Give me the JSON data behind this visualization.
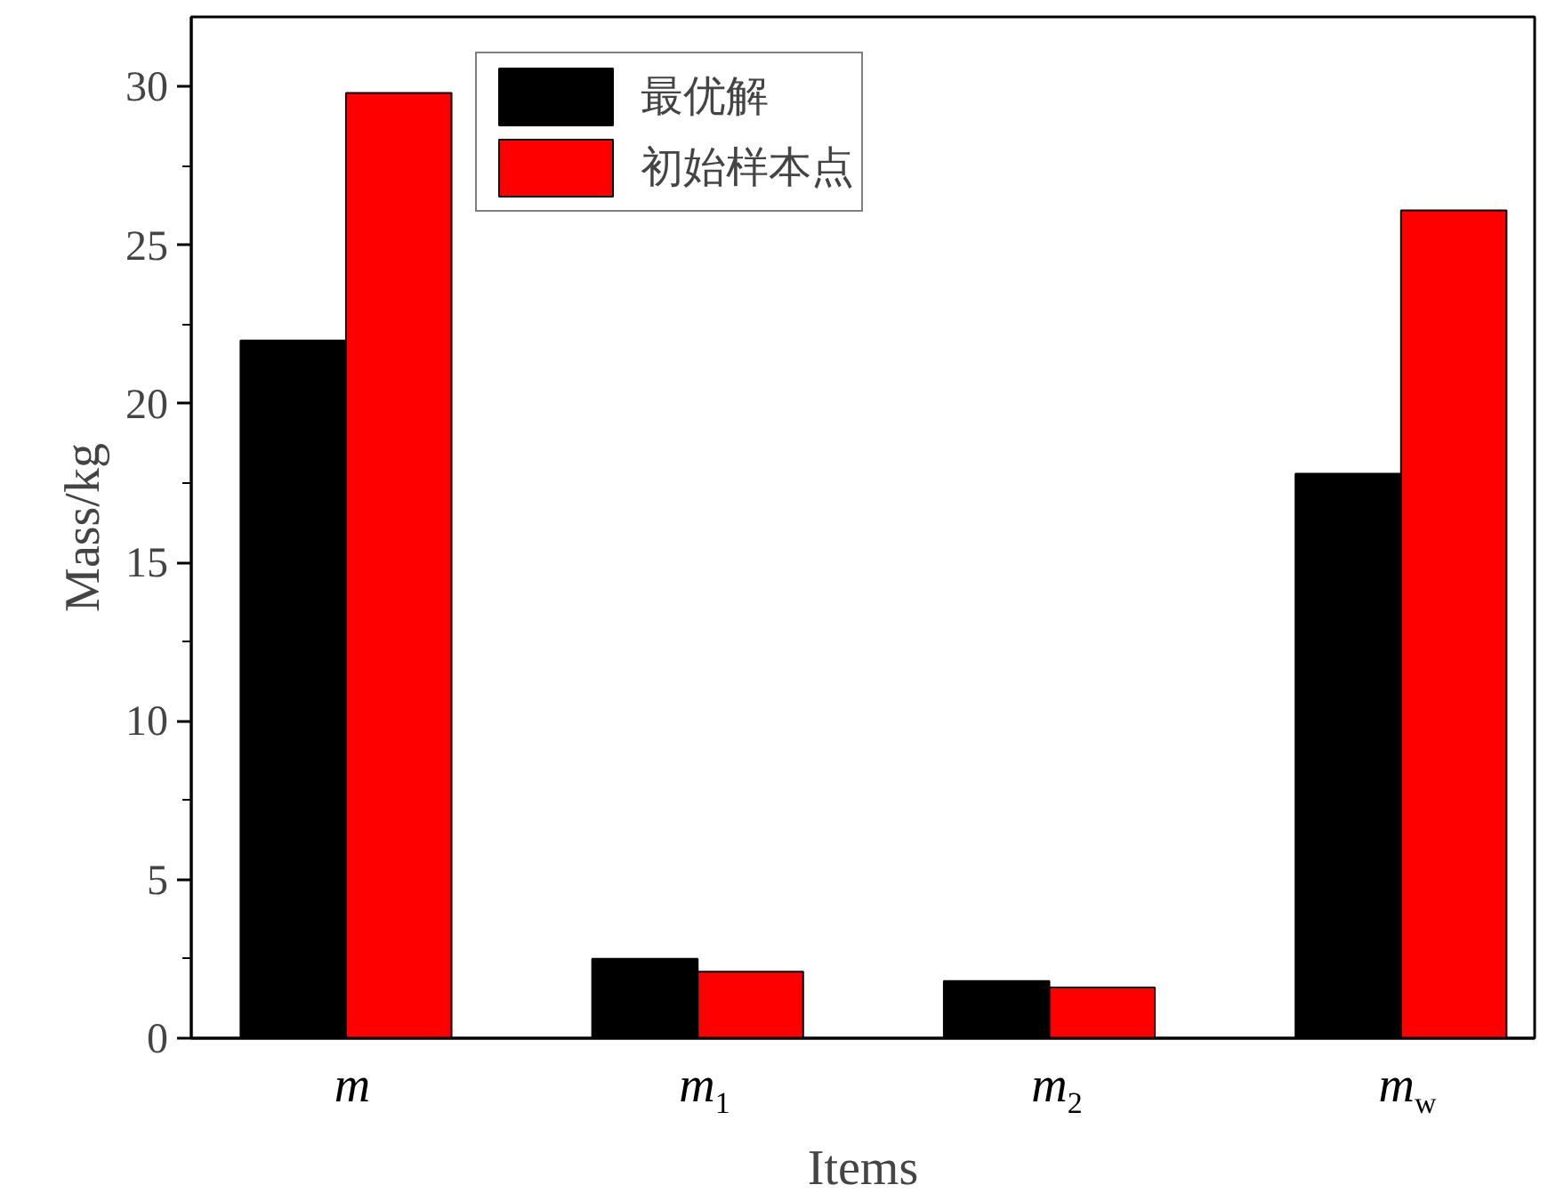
{
  "chart_data": {
    "type": "bar",
    "xlabel": "Items",
    "ylabel": "Mass/kg",
    "categories": [
      "m",
      "m$_{1}$",
      "m$_{2}$",
      "m$_{w}$"
    ],
    "series": [
      {
        "name": "最优解",
        "color": "#000000",
        "values": [
          22.0,
          2.5,
          1.8,
          17.8
        ]
      },
      {
        "name": "初始样本点",
        "color": "#ff0000",
        "values": [
          29.8,
          2.1,
          1.6,
          26.1
        ]
      }
    ],
    "ylim": [
      0,
      32.2
    ],
    "yticks": [
      0,
      {
        "value": 2.5,
        "label": null
      },
      5,
      {
        "value": 7.5,
        "label": null
      },
      10,
      {
        "value": 12.5,
        "label": null
      },
      15,
      {
        "value": 17.5,
        "label": null
      },
      20,
      {
        "value": 22.5,
        "label": null
      },
      25,
      {
        "value": 27.5,
        "label": null
      },
      30
    ],
    "grid": false,
    "legend": "top left"
  }
}
